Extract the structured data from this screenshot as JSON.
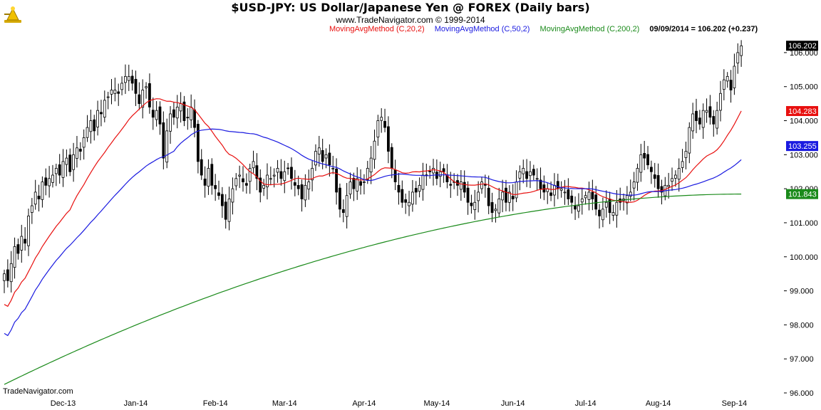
{
  "header": {
    "title": "$USD-JPY:  US Dollar/Japanese Yen @ FOREX  (Daily bars)",
    "subtitle": "www.TradeNavigator.com © 1999-2014"
  },
  "legend": [
    {
      "label": "MovingAvgMethod (C,20,2)",
      "color": "#e8100f"
    },
    {
      "label": "MovingAvgMethod (C,50,2)",
      "color": "#1a1ae0"
    },
    {
      "label": "MovingAvgMethod (C,200,2)",
      "color": "#1a8a1a"
    },
    {
      "label": "09/09/2014 = 106.202 (+0.237)",
      "color": "#000000"
    }
  ],
  "watermark": "TradeNavigator.com",
  "logo": "trade-navigator-logo",
  "chart_data": {
    "type": "candlestick",
    "title": "$USD-JPY:  US Dollar/Japanese Yen @ FOREX  (Daily bars)",
    "ylim": [
      96.0,
      106.5
    ],
    "grid": false,
    "y_ticks": [
      "106.000",
      "105.000",
      "104.000",
      "103.000",
      "102.000",
      "101.000",
      "100.000",
      "99.000",
      "98.000",
      "97.000",
      "96.000"
    ],
    "x_ticks": [
      "Dec-13",
      "Jan-14",
      "Feb-14",
      "Mar-14",
      "Apr-14",
      "May-14",
      "Jun-14",
      "Jul-14",
      "Aug-14",
      "Sep-14"
    ],
    "x_tick_index": [
      17,
      38,
      61,
      81,
      104,
      125,
      147,
      168,
      189,
      211
    ],
    "closes": [
      99.5,
      99.3,
      99.8,
      100.3,
      100.1,
      100.6,
      100.4,
      101.2,
      101.5,
      101.9,
      101.7,
      102.2,
      102.1,
      102.3,
      102.4,
      102.6,
      102.4,
      102.8,
      102.9,
      102.5,
      103.0,
      103.2,
      103.1,
      103.5,
      103.8,
      104.0,
      103.7,
      104.3,
      104.2,
      104.6,
      104.7,
      104.9,
      104.9,
      104.8,
      105.1,
      105.3,
      105.3,
      105.1,
      104.8,
      104.5,
      104.9,
      105.0,
      104.4,
      104.1,
      104.3,
      103.9,
      102.9,
      103.7,
      104.2,
      104.1,
      104.4,
      104.5,
      104.0,
      104.1,
      104.4,
      103.8,
      102.8,
      102.4,
      102.1,
      102.6,
      102.1,
      102.0,
      101.8,
      101.5,
      101.1,
      101.7,
      102.0,
      102.3,
      102.4,
      102.2,
      102.1,
      102.6,
      102.8,
      102.3,
      101.9,
      102.1,
      102.4,
      102.3,
      102.4,
      102.6,
      102.3,
      102.5,
      102.6,
      102.3,
      102.1,
      102.0,
      101.7,
      102.1,
      102.2,
      102.6,
      103.1,
      103.2,
      102.8,
      103.0,
      102.7,
      102.6,
      101.9,
      101.4,
      101.3,
      101.8,
      102.2,
      102.0,
      102.3,
      102.1,
      102.2,
      102.6,
      102.9,
      103.4,
      104.0,
      104.1,
      103.8,
      103.1,
      102.6,
      102.2,
      101.9,
      101.6,
      101.6,
      101.6,
      101.9,
      101.9,
      102.1,
      102.4,
      102.4,
      102.5,
      102.6,
      102.3,
      102.5,
      102.5,
      102.2,
      102.1,
      102.2,
      102.1,
      102.2,
      101.9,
      101.6,
      101.5,
      101.6,
      101.9,
      102.2,
      102.1,
      101.5,
      101.3,
      101.4,
      101.7,
      101.9,
      101.6,
      101.9,
      101.7,
      102.2,
      102.5,
      102.6,
      102.3,
      102.5,
      102.4,
      102.3,
      102.0,
      101.9,
      102.0,
      101.8,
      102.1,
      102.0,
      102.0,
      101.9,
      101.7,
      101.6,
      101.4,
      101.5,
      101.7,
      101.8,
      101.9,
      101.7,
      101.4,
      101.2,
      101.4,
      101.6,
      101.3,
      101.3,
      101.6,
      101.6,
      101.7,
      101.8,
      101.9,
      102.2,
      102.6,
      103.0,
      102.9,
      102.7,
      102.5,
      102.3,
      102.0,
      101.9,
      102.1,
      102.1,
      102.3,
      102.4,
      102.6,
      102.8,
      103.1,
      103.8,
      104.2,
      104.0,
      103.9,
      104.3,
      104.3,
      104.1,
      103.9,
      104.3,
      104.8,
      105.2,
      105.3,
      104.9,
      105.6,
      106.0,
      106.2
    ],
    "series": [
      {
        "name": "MovingAvgMethod (C,20,2)",
        "color": "#e8100f",
        "period": 20,
        "last": "104.283"
      },
      {
        "name": "MovingAvgMethod (C,50,2)",
        "color": "#1a1ae0",
        "period": 50,
        "last": "103.255"
      },
      {
        "name": "MovingAvgMethod (C,200,2)",
        "color": "#1a8a1a",
        "period": 200,
        "last": "101.843"
      }
    ],
    "last_price": "106.202",
    "last_date": "09/09/2014"
  }
}
